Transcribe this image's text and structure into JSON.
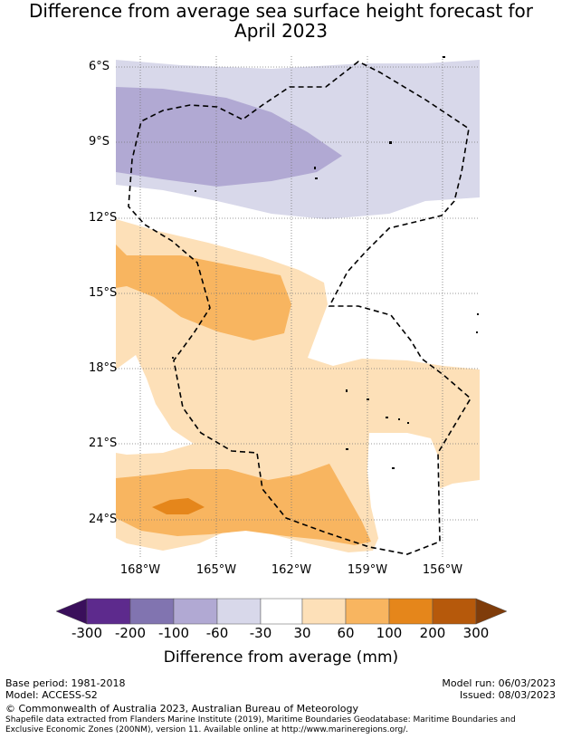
{
  "title": {
    "line1": "Difference from average sea surface height forecast for",
    "line2": "April 2023"
  },
  "map": {
    "latitude_labels": [
      "6°S",
      "9°S",
      "12°S",
      "15°S",
      "18°S",
      "21°S",
      "24°S"
    ],
    "longitude_labels": [
      "168°W",
      "165°W",
      "162°W",
      "159°W",
      "156°W"
    ],
    "boundary_style": "dashed",
    "region_colors": {
      "below_minus_30": "#d8d8ea",
      "below_minus_60": "#b1a9d3",
      "above_30": "#fde0b8",
      "above_60": "#f8b560",
      "above_100": "#e5861b"
    }
  },
  "colorbar": {
    "ticks": [
      "-300",
      "-200",
      "-100",
      "-60",
      "-30",
      "30",
      "60",
      "100",
      "200",
      "300"
    ],
    "label": "Difference from average (mm)",
    "colors": [
      "#3a0f5b",
      "#5d2a8d",
      "#8174b0",
      "#b1a9d3",
      "#d8d8ea",
      "#ffffff",
      "#fde0b8",
      "#f8b560",
      "#e5861b",
      "#b6590b",
      "#7f3c0a"
    ]
  },
  "footer": {
    "base_period": "Base period: 1981-2018",
    "model": "Model: ACCESS-S2",
    "model_run": "Model run: 06/03/2023",
    "issued": "Issued: 08/03/2023",
    "copyright": "© Commonwealth of Australia 2023, Australian Bureau of Meteorology",
    "shapefile": "Shapefile data extracted from Flanders Marine Institute (2019), Maritime Boundaries Geodatabase: Maritime Boundaries and Exclusive Economic Zones (200NM), version 11. Available online at http://www.marineregions.org/."
  }
}
